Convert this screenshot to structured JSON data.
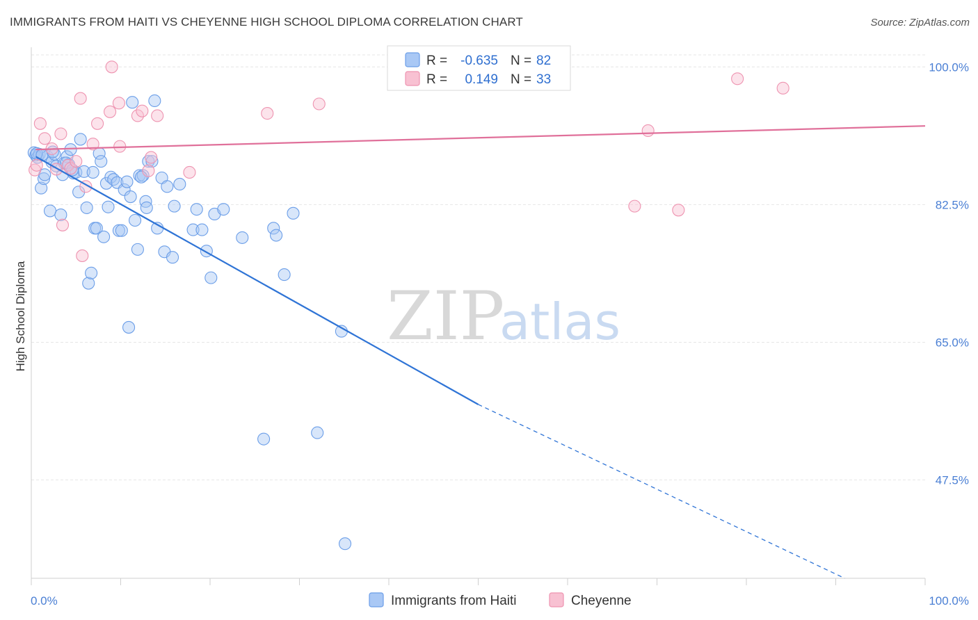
{
  "header": {
    "title": "IMMIGRANTS FROM HAITI VS CHEYENNE HIGH SCHOOL DIPLOMA CORRELATION CHART",
    "source": "Source: ZipAtlas.com"
  },
  "watermark": {
    "zip": "ZIP",
    "atlas": "atlas"
  },
  "legend": {
    "r_label": "R =",
    "n_label": "N =",
    "entries": [
      {
        "r": "-0.635",
        "n": "82",
        "color": "#a9c8f5",
        "stroke": "#6b9ee8"
      },
      {
        "r": "0.149",
        "n": "33",
        "color": "#f8c1d2",
        "stroke": "#ee93b0"
      }
    ]
  },
  "chart_data": {
    "type": "scatter",
    "title": "IMMIGRANTS FROM HAITI VS CHEYENNE HIGH SCHOOL DIPLOMA CORRELATION CHART",
    "xlabel": "",
    "ylabel": "High School Diploma",
    "xlim": [
      0,
      100
    ],
    "ylim": [
      35,
      102.5
    ],
    "x_tick_labels": [
      "0.0%",
      "100.0%"
    ],
    "y_ticks": [
      47.5,
      65.0,
      82.5,
      100.0
    ],
    "y_tick_labels": [
      "47.5%",
      "65.0%",
      "82.5%",
      "100.0%"
    ],
    "grid": true,
    "legend_position": "top-center",
    "series": [
      {
        "name": "Immigrants from Haiti",
        "color": "#a9c8f5",
        "line_color": "#2f74d6",
        "trend": {
          "x0": 0.5,
          "y0": 88.6,
          "x1": 50.0,
          "y1": 57.1,
          "dash_to_x": 91.0,
          "dash_to_y": 35.0
        },
        "points": [
          [
            0.3,
            89.1
          ],
          [
            0.5,
            88.8
          ],
          [
            0.7,
            88.5
          ],
          [
            0.9,
            88.9
          ],
          [
            1.1,
            84.6
          ],
          [
            1.4,
            85.8
          ],
          [
            1.5,
            86.3
          ],
          [
            1.8,
            88.6
          ],
          [
            2.1,
            81.7
          ],
          [
            2.3,
            87.9
          ],
          [
            2.6,
            88.9
          ],
          [
            2.8,
            87.4
          ],
          [
            3.3,
            81.2
          ],
          [
            3.5,
            86.3
          ],
          [
            3.7,
            87.8
          ],
          [
            4.0,
            88.6
          ],
          [
            4.2,
            87.6
          ],
          [
            4.4,
            89.5
          ],
          [
            4.7,
            86.5
          ],
          [
            5.0,
            86.6
          ],
          [
            5.3,
            84.1
          ],
          [
            5.5,
            90.8
          ],
          [
            5.9,
            86.7
          ],
          [
            6.2,
            82.1
          ],
          [
            6.4,
            72.5
          ],
          [
            6.7,
            73.8
          ],
          [
            6.9,
            86.6
          ],
          [
            7.1,
            79.5
          ],
          [
            7.3,
            79.5
          ],
          [
            7.6,
            89.0
          ],
          [
            7.8,
            88.0
          ],
          [
            8.1,
            78.4
          ],
          [
            8.4,
            85.2
          ],
          [
            8.6,
            82.2
          ],
          [
            8.9,
            86.0
          ],
          [
            9.2,
            85.7
          ],
          [
            9.6,
            85.3
          ],
          [
            9.8,
            79.2
          ],
          [
            10.1,
            79.2
          ],
          [
            10.4,
            84.4
          ],
          [
            10.7,
            85.4
          ],
          [
            10.9,
            66.9
          ],
          [
            11.1,
            83.5
          ],
          [
            11.3,
            95.5
          ],
          [
            11.6,
            80.5
          ],
          [
            11.9,
            76.8
          ],
          [
            12.1,
            86.2
          ],
          [
            12.5,
            86.2
          ],
          [
            12.8,
            82.9
          ],
          [
            12.9,
            82.1
          ],
          [
            13.1,
            88.0
          ],
          [
            13.5,
            88.0
          ],
          [
            13.8,
            95.7
          ],
          [
            14.1,
            79.5
          ],
          [
            14.6,
            85.9
          ],
          [
            14.9,
            76.5
          ],
          [
            15.2,
            84.8
          ],
          [
            15.8,
            75.8
          ],
          [
            16.0,
            82.3
          ],
          [
            16.6,
            85.1
          ],
          [
            18.1,
            79.3
          ],
          [
            18.5,
            81.9
          ],
          [
            19.1,
            79.3
          ],
          [
            19.6,
            76.6
          ],
          [
            20.1,
            73.2
          ],
          [
            20.5,
            81.3
          ],
          [
            21.5,
            81.9
          ],
          [
            23.6,
            78.3
          ],
          [
            26.0,
            52.7
          ],
          [
            27.1,
            79.5
          ],
          [
            27.4,
            78.6
          ],
          [
            28.3,
            73.6
          ],
          [
            29.3,
            81.4
          ],
          [
            32.0,
            53.5
          ],
          [
            34.7,
            66.4
          ],
          [
            35.1,
            39.4
          ],
          [
            0.6,
            89.0
          ],
          [
            1.2,
            88.8
          ],
          [
            2.4,
            89.2
          ],
          [
            3.9,
            87.8
          ],
          [
            4.6,
            86.9
          ],
          [
            12.3,
            86.0
          ]
        ]
      },
      {
        "name": "Cheyenne",
        "color": "#f8c1d2",
        "line_color": "#e0709a",
        "trend": {
          "x0": 0.5,
          "y0": 89.5,
          "x1": 100.0,
          "y1": 92.5
        },
        "points": [
          [
            0.4,
            86.9
          ],
          [
            0.6,
            87.5
          ],
          [
            1.0,
            92.8
          ],
          [
            1.5,
            90.9
          ],
          [
            2.3,
            89.6
          ],
          [
            2.8,
            87.0
          ],
          [
            3.3,
            91.5
          ],
          [
            3.5,
            79.9
          ],
          [
            4.1,
            87.5
          ],
          [
            4.4,
            87.1
          ],
          [
            5.5,
            96.0
          ],
          [
            5.7,
            76.0
          ],
          [
            6.1,
            84.8
          ],
          [
            6.9,
            90.2
          ],
          [
            7.4,
            92.8
          ],
          [
            8.8,
            94.3
          ],
          [
            9.0,
            100.0
          ],
          [
            9.8,
            95.4
          ],
          [
            9.9,
            89.9
          ],
          [
            11.9,
            93.8
          ],
          [
            12.4,
            94.4
          ],
          [
            13.1,
            86.8
          ],
          [
            13.4,
            88.5
          ],
          [
            14.1,
            93.8
          ],
          [
            17.7,
            86.6
          ],
          [
            26.4,
            94.1
          ],
          [
            32.2,
            95.3
          ],
          [
            67.5,
            82.3
          ],
          [
            69.0,
            91.9
          ],
          [
            72.4,
            81.8
          ],
          [
            79.0,
            98.5
          ],
          [
            84.1,
            97.3
          ],
          [
            5.0,
            88.0
          ]
        ]
      }
    ]
  },
  "bottom_legend": [
    {
      "label": "Immigrants from Haiti",
      "color": "#a9c8f5",
      "stroke": "#6b9ee8"
    },
    {
      "label": "Cheyenne",
      "color": "#f8c1d2",
      "stroke": "#ee93b0"
    }
  ]
}
